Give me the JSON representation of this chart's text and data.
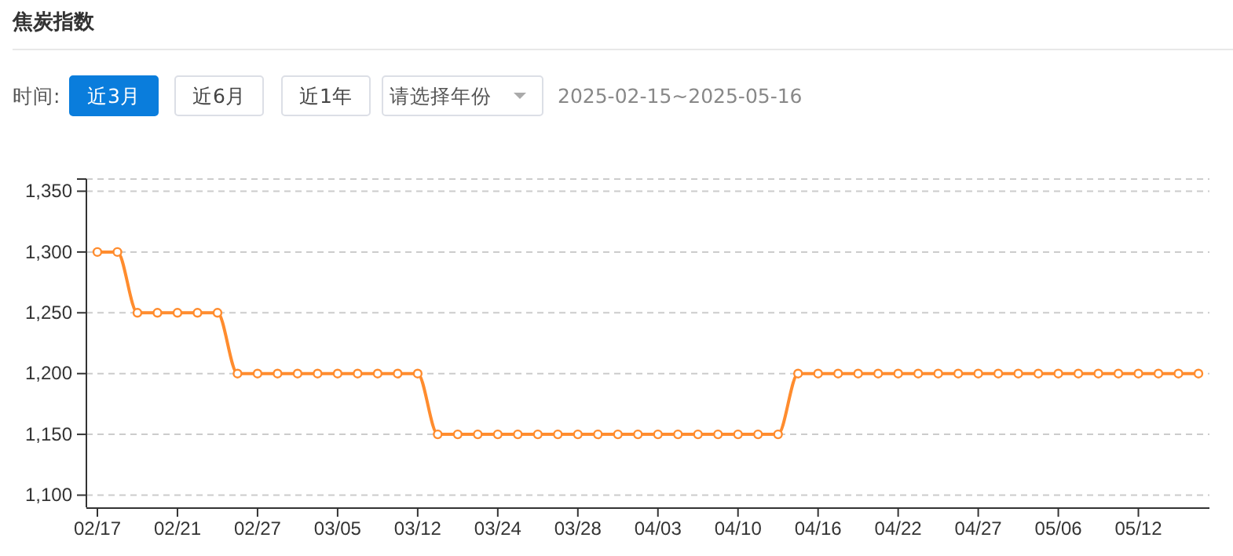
{
  "chart_data": {
    "type": "line",
    "title": "焦炭指数",
    "annotations": [
      "时间:",
      "近3月",
      "近6月",
      "近1年",
      "请选择年份",
      "2025-02-15~2025-05-16"
    ],
    "categories": [
      "02/17",
      null,
      null,
      null,
      "02/21",
      null,
      null,
      null,
      "02/27",
      null,
      null,
      null,
      "03/05",
      null,
      null,
      null,
      "03/12",
      null,
      null,
      null,
      "03/24",
      null,
      null,
      null,
      "03/28",
      null,
      null,
      null,
      "04/03",
      null,
      null,
      null,
      "04/10",
      null,
      null,
      null,
      "04/16",
      null,
      null,
      null,
      "04/22",
      null,
      null,
      null,
      "04/27",
      null,
      null,
      null,
      "05/06",
      null,
      null,
      null,
      "05/12",
      null,
      null,
      null
    ],
    "series": [
      {
        "color": "#ff8c2e",
        "values": [
          1300,
          1300,
          1250,
          1250,
          1250,
          1250,
          1250,
          1200,
          1200,
          1200,
          1200,
          1200,
          1200,
          1200,
          1200,
          1200,
          1200,
          1150,
          1150,
          1150,
          1150,
          1150,
          1150,
          1150,
          1150,
          1150,
          1150,
          1150,
          1150,
          1150,
          1150,
          1150,
          1150,
          1150,
          1150,
          1200,
          1200,
          1200,
          1200,
          1200,
          1200,
          1200,
          1200,
          1200,
          1200,
          1200,
          1200,
          1200,
          1200,
          1200,
          1200,
          1200,
          1200,
          1200,
          1200,
          1200
        ]
      }
    ],
    "ylim": [
      1090,
      1360
    ],
    "yticks": [
      {
        "value": 1100,
        "label": "1,100"
      },
      {
        "value": 1150,
        "label": "1,150"
      },
      {
        "value": 1200,
        "label": "1,200"
      },
      {
        "value": 1250,
        "label": "1,250"
      },
      {
        "value": 1300,
        "label": "1,300"
      },
      {
        "value": 1350,
        "label": "1,350"
      },
      {
        "value": 1360,
        "label": null
      }
    ],
    "grid": "y",
    "marker": "circle",
    "line_style": "solid"
  }
}
